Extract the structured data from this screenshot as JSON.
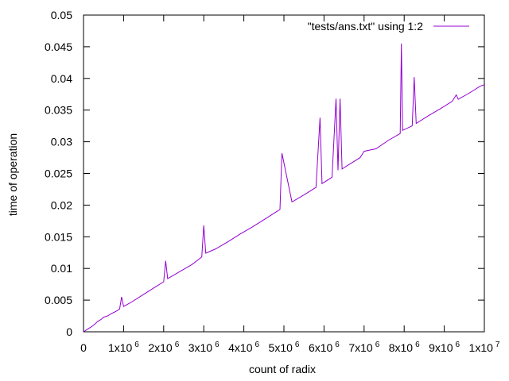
{
  "chart_data": {
    "type": "line",
    "title": "",
    "xlabel": "count of radix",
    "ylabel": "time of operation",
    "xlim": [
      0,
      10000000
    ],
    "ylim": [
      0,
      0.05
    ],
    "grid": false,
    "legend_position": "top-right",
    "x_ticks": [
      {
        "value": 0,
        "base": "0",
        "exp": ""
      },
      {
        "value": 1000000,
        "base": "1x10",
        "exp": "6"
      },
      {
        "value": 2000000,
        "base": "2x10",
        "exp": "6"
      },
      {
        "value": 3000000,
        "base": "3x10",
        "exp": "6"
      },
      {
        "value": 4000000,
        "base": "4x10",
        "exp": "6"
      },
      {
        "value": 5000000,
        "base": "5x10",
        "exp": "6"
      },
      {
        "value": 6000000,
        "base": "6x10",
        "exp": "6"
      },
      {
        "value": 7000000,
        "base": "7x10",
        "exp": "6"
      },
      {
        "value": 8000000,
        "base": "8x10",
        "exp": "6"
      },
      {
        "value": 9000000,
        "base": "9x10",
        "exp": "6"
      },
      {
        "value": 10000000,
        "base": "1x10",
        "exp": "7"
      }
    ],
    "y_ticks": [
      {
        "value": 0,
        "label": "0"
      },
      {
        "value": 0.005,
        "label": "0.005"
      },
      {
        "value": 0.01,
        "label": "0.01"
      },
      {
        "value": 0.015,
        "label": "0.015"
      },
      {
        "value": 0.02,
        "label": "0.02"
      },
      {
        "value": 0.025,
        "label": "0.025"
      },
      {
        "value": 0.03,
        "label": "0.03"
      },
      {
        "value": 0.035,
        "label": "0.035"
      },
      {
        "value": 0.04,
        "label": "0.04"
      },
      {
        "value": 0.045,
        "label": "0.045"
      },
      {
        "value": 0.05,
        "label": "0.05"
      }
    ],
    "series": [
      {
        "name": "\"tests/ans.txt\" using 1:2",
        "color": "#9400d3",
        "x": [
          0,
          100000,
          200000,
          300000,
          350000,
          400000,
          450000,
          500000,
          600000,
          700000,
          800000,
          900000,
          950000,
          1000000,
          1200000,
          1400000,
          1600000,
          1800000,
          2000000,
          2050000,
          2100000,
          2400000,
          2700000,
          2950000,
          3000000,
          3050000,
          3300000,
          3600000,
          3900000,
          4200000,
          4500000,
          4800000,
          4900000,
          4950000,
          5200000,
          5500000,
          5800000,
          5900000,
          5950000,
          6200000,
          6300000,
          6350000,
          6400000,
          6450000,
          6600000,
          6900000,
          7000000,
          7300000,
          7600000,
          7900000,
          7930000,
          7960000,
          8200000,
          8250000,
          8300000,
          8600000,
          8900000,
          9200000,
          9300000,
          9350000,
          9600000,
          9900000,
          10000000
        ],
        "y": [
          0,
          0.0004,
          0.0008,
          0.0013,
          0.0016,
          0.0018,
          0.002,
          0.0023,
          0.0025,
          0.0029,
          0.0032,
          0.0036,
          0.0055,
          0.004,
          0.0047,
          0.0055,
          0.0063,
          0.0071,
          0.0079,
          0.0112,
          0.0084,
          0.0095,
          0.0106,
          0.0118,
          0.0168,
          0.0124,
          0.0131,
          0.0142,
          0.0154,
          0.0165,
          0.0177,
          0.0189,
          0.0193,
          0.0282,
          0.0205,
          0.0216,
          0.0228,
          0.0338,
          0.0234,
          0.0244,
          0.0368,
          0.0255,
          0.0368,
          0.0257,
          0.0263,
          0.0275,
          0.0285,
          0.0289,
          0.0302,
          0.0313,
          0.0455,
          0.0318,
          0.0325,
          0.0402,
          0.0329,
          0.0341,
          0.0352,
          0.0364,
          0.0374,
          0.0367,
          0.0376,
          0.0388,
          0.039
        ]
      }
    ]
  }
}
